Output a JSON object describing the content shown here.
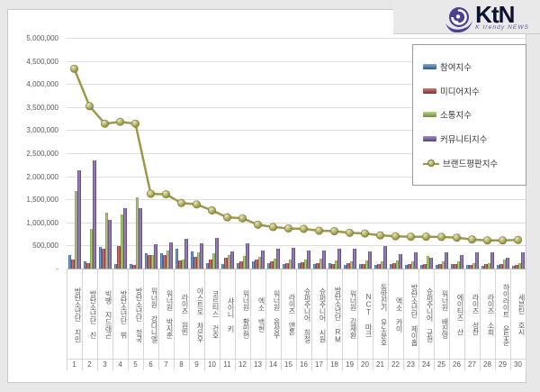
{
  "logo": {
    "text": "KtN",
    "subtext": "K trendy NEWS",
    "icon": "swirl-wave-icon",
    "text_color": "#0f1030",
    "accent_color": "#4c3f92"
  },
  "chart_data": {
    "type": "bar",
    "note": "grouped 3D-style bars with overlaid line series",
    "grid": "horizontal",
    "legend_position": "top-right-inside",
    "y_axis": {
      "min": 0,
      "max": 5000000,
      "step": 500000,
      "tick_labels": [
        "5,000,000",
        "4,500,000",
        "4,000,000",
        "3,500,000",
        "3,000,000",
        "2,500,000",
        "2,000,000",
        "1,500,000",
        "1,000,000",
        "500,000",
        "-"
      ]
    },
    "categories": [
      "방탄소년단 지민",
      "방탄소년단 진",
      "빅뱅 지드래곤",
      "방탄소년단 뷔",
      "방탄소년단 정국",
      "워너원 강다니엘",
      "워너원 박지훈",
      "라이즈 원빈",
      "아스트로 차은우",
      "코르티스 건호",
      "샤이니 키",
      "워너원 황민현",
      "엑소 백현",
      "워너원 옹성우",
      "라이즈 앤톤",
      "슈퍼주니어 희철",
      "슈퍼주니어 시원",
      "방탄소년단 RM",
      "워너원 김재환",
      "NCT 마크",
      "동방신기 유노윤호",
      "엑소 카이",
      "방탄소년단 제이홉",
      "슈퍼주니어 규현",
      "워너원 배진영",
      "에이티즈 산",
      "라이즈 성찬",
      "라이즈 소희",
      "하이라이트 윤두준",
      "세븐틴 호시"
    ],
    "category_numbers": [
      "1",
      "2",
      "3",
      "4",
      "5",
      "6",
      "7",
      "8",
      "9",
      "10",
      "11",
      "12",
      "13",
      "14",
      "15",
      "16",
      "17",
      "18",
      "19",
      "20",
      "21",
      "22",
      "23",
      "24",
      "25",
      "26",
      "27",
      "28",
      "29",
      "30"
    ],
    "series": [
      {
        "name": "참여지수",
        "key": "participation",
        "type": "bar",
        "color": "#4F81BD",
        "values": [
          300000,
          160000,
          470000,
          100000,
          100000,
          330000,
          340000,
          420000,
          380000,
          120000,
          100000,
          110000,
          150000,
          120000,
          100000,
          120000,
          100000,
          120000,
          80000,
          100000,
          80000,
          100000,
          80000,
          80000,
          80000,
          100000,
          80000,
          60000,
          80000,
          60000
        ]
      },
      {
        "name": "미디어지수",
        "key": "media",
        "type": "bar",
        "color": "#C0504D",
        "values": [
          200000,
          120000,
          420000,
          480000,
          80000,
          290000,
          290000,
          170000,
          260000,
          190000,
          240000,
          160000,
          200000,
          150000,
          120000,
          140000,
          120000,
          100000,
          120000,
          100000,
          100000,
          120000,
          100000,
          100000,
          100000,
          100000,
          80000,
          90000,
          100000,
          80000
        ]
      },
      {
        "name": "소통지수",
        "key": "communication",
        "type": "bar",
        "color": "#9BBB59",
        "values": [
          1670000,
          850000,
          1220000,
          1180000,
          1550000,
          300000,
          400000,
          190000,
          350000,
          330000,
          300000,
          280000,
          250000,
          220000,
          200000,
          200000,
          220000,
          180000,
          150000,
          180000,
          150000,
          180000,
          150000,
          280000,
          150000,
          150000,
          120000,
          110000,
          200000,
          120000
        ]
      },
      {
        "name": "커뮤니티지수",
        "key": "community",
        "type": "bar",
        "color": "#8064A2",
        "values": [
          2120000,
          2350000,
          1050000,
          1300000,
          1310000,
          530000,
          560000,
          650000,
          540000,
          670000,
          380000,
          550000,
          400000,
          420000,
          450000,
          400000,
          390000,
          420000,
          430000,
          380000,
          490000,
          320000,
          350000,
          230000,
          350000,
          300000,
          350000,
          350000,
          230000,
          360000
        ]
      },
      {
        "name": "브랜드평판지수",
        "key": "brand",
        "type": "line",
        "color": "#A6A44E",
        "values": [
          4330000,
          3520000,
          3140000,
          3180000,
          3140000,
          1620000,
          1610000,
          1420000,
          1390000,
          1260000,
          1110000,
          1090000,
          950000,
          900000,
          870000,
          860000,
          820000,
          810000,
          775000,
          760000,
          720000,
          700000,
          690000,
          690000,
          685000,
          670000,
          630000,
          610000,
          610000,
          620000
        ]
      }
    ]
  }
}
